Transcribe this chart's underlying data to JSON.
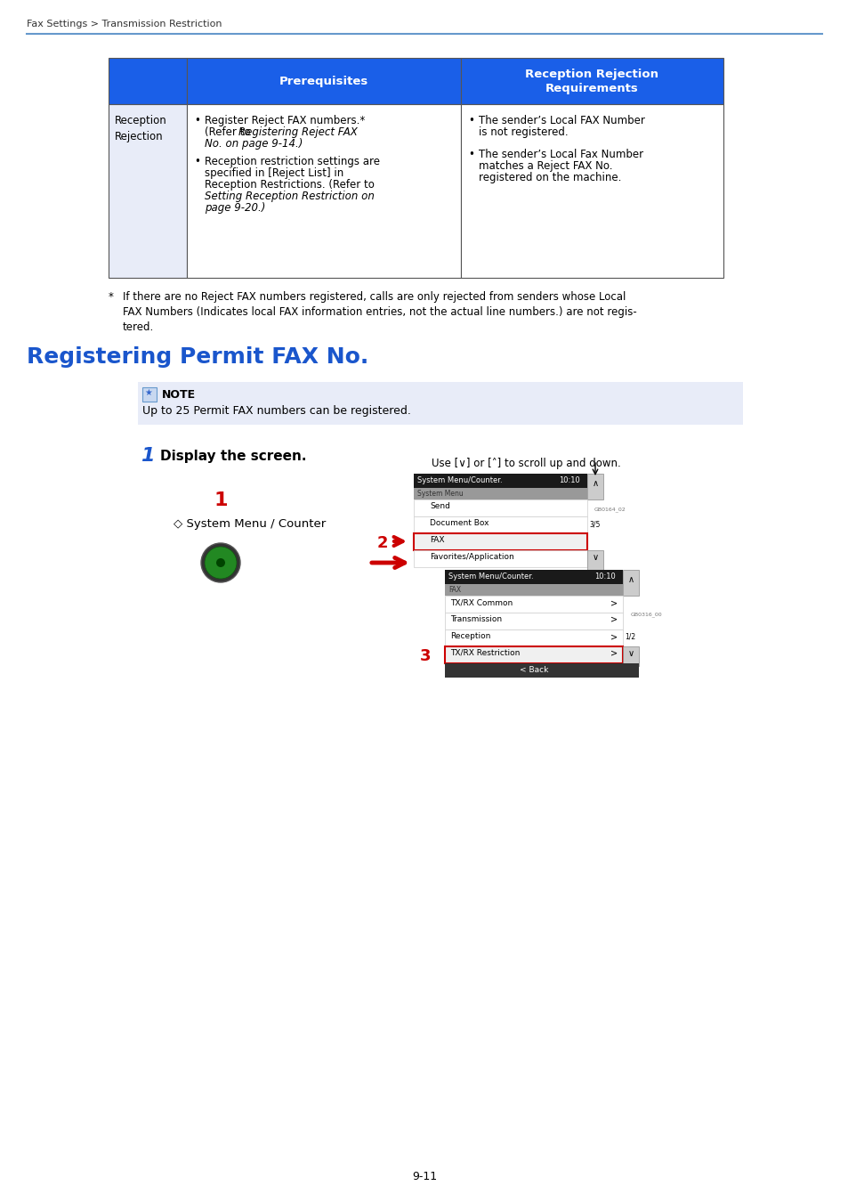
{
  "page_header": "Fax Settings > Transmission Restriction",
  "header_line_color": "#6699cc",
  "bg_color": "#ffffff",
  "table": {
    "header_bg": "#1a5fe8",
    "header_text_color": "#ffffff",
    "row_bg": "#e8ecf8",
    "border_color": "#555555",
    "col2_header": "Prerequisites",
    "col3_header": "Reception Rejection\nRequirements",
    "row_label": "Reception\nRejection"
  },
  "footnote_star": "*",
  "footnote_text": "If there are no Reject FAX numbers registered, calls are only rejected from senders whose Local\nFAX Numbers (Indicates local FAX information entries, not the actual line numbers.) are not regis-\ntered.",
  "section_title": "Registering Permit FAX No.",
  "section_title_color": "#1a56cc",
  "note_bg": "#e8ecf8",
  "note_title": "NOTE",
  "note_text": "Up to 25 Permit FAX numbers can be registered.",
  "step_title": "Display the screen.",
  "system_menu_text": "◇ System Menu / Counter",
  "scroll_note": "Use [∨] or [˄] to scroll up and down.",
  "label1_color": "#cc0000",
  "label2_color": "#cc0000",
  "label3_color": "#cc0000",
  "arrow_color": "#cc0000",
  "page_number": "9-11"
}
